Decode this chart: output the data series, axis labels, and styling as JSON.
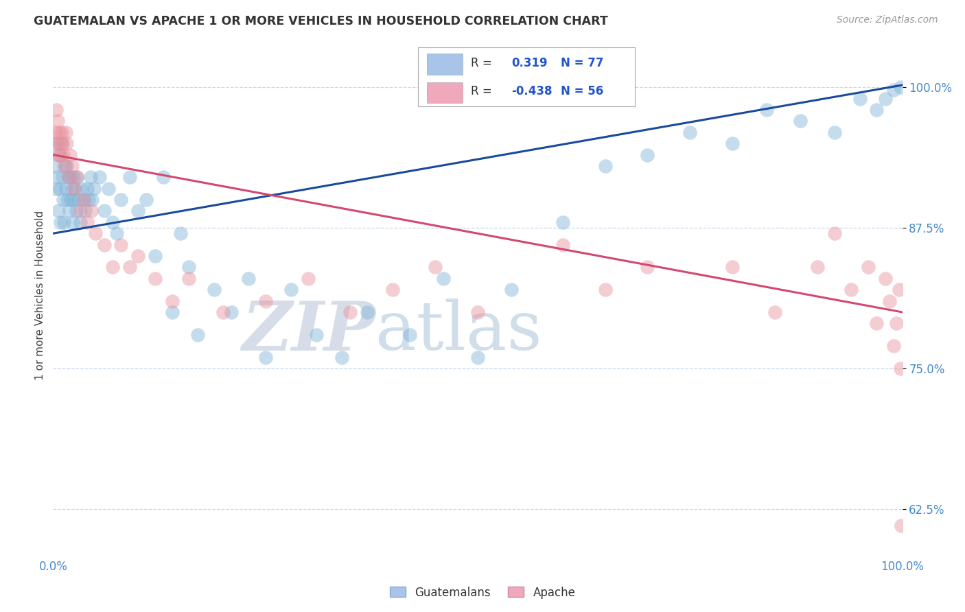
{
  "title": "GUATEMALAN VS APACHE 1 OR MORE VEHICLES IN HOUSEHOLD CORRELATION CHART",
  "source": "Source: ZipAtlas.com",
  "ylabel": "1 or more Vehicles in Household",
  "ytick_labels": [
    "100.0%",
    "87.5%",
    "75.0%",
    "62.5%"
  ],
  "ytick_values": [
    1.0,
    0.875,
    0.75,
    0.625
  ],
  "legend_entries": [
    {
      "label": "Guatemalans",
      "color": "#a8c4e8",
      "R": 0.319,
      "N": 77
    },
    {
      "label": "Apache",
      "color": "#f0a8bc",
      "R": -0.438,
      "N": 56
    }
  ],
  "blue_line_y_start": 0.87,
  "blue_line_y_end": 1.002,
  "pink_line_y_start": 0.94,
  "pink_line_y_end": 0.8,
  "blue_dot_color": "#7fb3d8",
  "pink_dot_color": "#e8909c",
  "blue_line_color": "#1a4a9c",
  "pink_line_color": "#d44870",
  "background_color": "#ffffff",
  "grid_color": "#c8d8e8",
  "watermark_zip": "ZIP",
  "watermark_atlas": "atlas",
  "xlim": [
    0.0,
    1.0
  ],
  "ylim": [
    0.585,
    1.045
  ],
  "blue_x": [
    0.002,
    0.003,
    0.004,
    0.005,
    0.006,
    0.007,
    0.008,
    0.009,
    0.01,
    0.011,
    0.012,
    0.013,
    0.014,
    0.015,
    0.016,
    0.017,
    0.018,
    0.019,
    0.02,
    0.021,
    0.022,
    0.023,
    0.024,
    0.025,
    0.026,
    0.027,
    0.028,
    0.03,
    0.032,
    0.034,
    0.036,
    0.038,
    0.04,
    0.042,
    0.044,
    0.046,
    0.048,
    0.055,
    0.06,
    0.065,
    0.07,
    0.075,
    0.08,
    0.09,
    0.1,
    0.11,
    0.12,
    0.13,
    0.14,
    0.15,
    0.16,
    0.17,
    0.19,
    0.21,
    0.23,
    0.25,
    0.28,
    0.31,
    0.34,
    0.37,
    0.42,
    0.46,
    0.5,
    0.54,
    0.6,
    0.65,
    0.7,
    0.75,
    0.8,
    0.84,
    0.88,
    0.92,
    0.95,
    0.97,
    0.98,
    0.99,
    0.998
  ],
  "blue_y": [
    0.93,
    0.91,
    0.95,
    0.92,
    0.89,
    0.94,
    0.91,
    0.88,
    0.95,
    0.92,
    0.9,
    0.88,
    0.93,
    0.91,
    0.93,
    0.9,
    0.92,
    0.89,
    0.92,
    0.9,
    0.91,
    0.88,
    0.92,
    0.9,
    0.91,
    0.89,
    0.92,
    0.9,
    0.88,
    0.91,
    0.9,
    0.89,
    0.91,
    0.9,
    0.92,
    0.9,
    0.91,
    0.92,
    0.89,
    0.91,
    0.88,
    0.87,
    0.9,
    0.92,
    0.89,
    0.9,
    0.85,
    0.92,
    0.8,
    0.87,
    0.84,
    0.78,
    0.82,
    0.8,
    0.83,
    0.76,
    0.82,
    0.78,
    0.76,
    0.8,
    0.78,
    0.83,
    0.76,
    0.82,
    0.88,
    0.93,
    0.94,
    0.96,
    0.95,
    0.98,
    0.97,
    0.96,
    0.99,
    0.98,
    0.99,
    0.998,
    1.0
  ],
  "pink_x": [
    0.002,
    0.003,
    0.004,
    0.005,
    0.006,
    0.007,
    0.008,
    0.009,
    0.01,
    0.011,
    0.012,
    0.013,
    0.015,
    0.016,
    0.018,
    0.02,
    0.022,
    0.025,
    0.028,
    0.032,
    0.036,
    0.04,
    0.045,
    0.05,
    0.06,
    0.07,
    0.08,
    0.09,
    0.1,
    0.12,
    0.14,
    0.16,
    0.2,
    0.25,
    0.3,
    0.35,
    0.4,
    0.45,
    0.5,
    0.6,
    0.65,
    0.7,
    0.8,
    0.85,
    0.9,
    0.92,
    0.94,
    0.96,
    0.97,
    0.98,
    0.985,
    0.99,
    0.993,
    0.996,
    0.998,
    0.999
  ],
  "pink_y": [
    0.96,
    0.95,
    0.98,
    0.97,
    0.94,
    0.96,
    0.95,
    0.94,
    0.96,
    0.95,
    0.94,
    0.93,
    0.96,
    0.95,
    0.92,
    0.94,
    0.93,
    0.91,
    0.92,
    0.89,
    0.9,
    0.88,
    0.89,
    0.87,
    0.86,
    0.84,
    0.86,
    0.84,
    0.85,
    0.83,
    0.81,
    0.83,
    0.8,
    0.81,
    0.83,
    0.8,
    0.82,
    0.84,
    0.8,
    0.86,
    0.82,
    0.84,
    0.84,
    0.8,
    0.84,
    0.87,
    0.82,
    0.84,
    0.79,
    0.83,
    0.81,
    0.77,
    0.79,
    0.82,
    0.75,
    0.61
  ]
}
